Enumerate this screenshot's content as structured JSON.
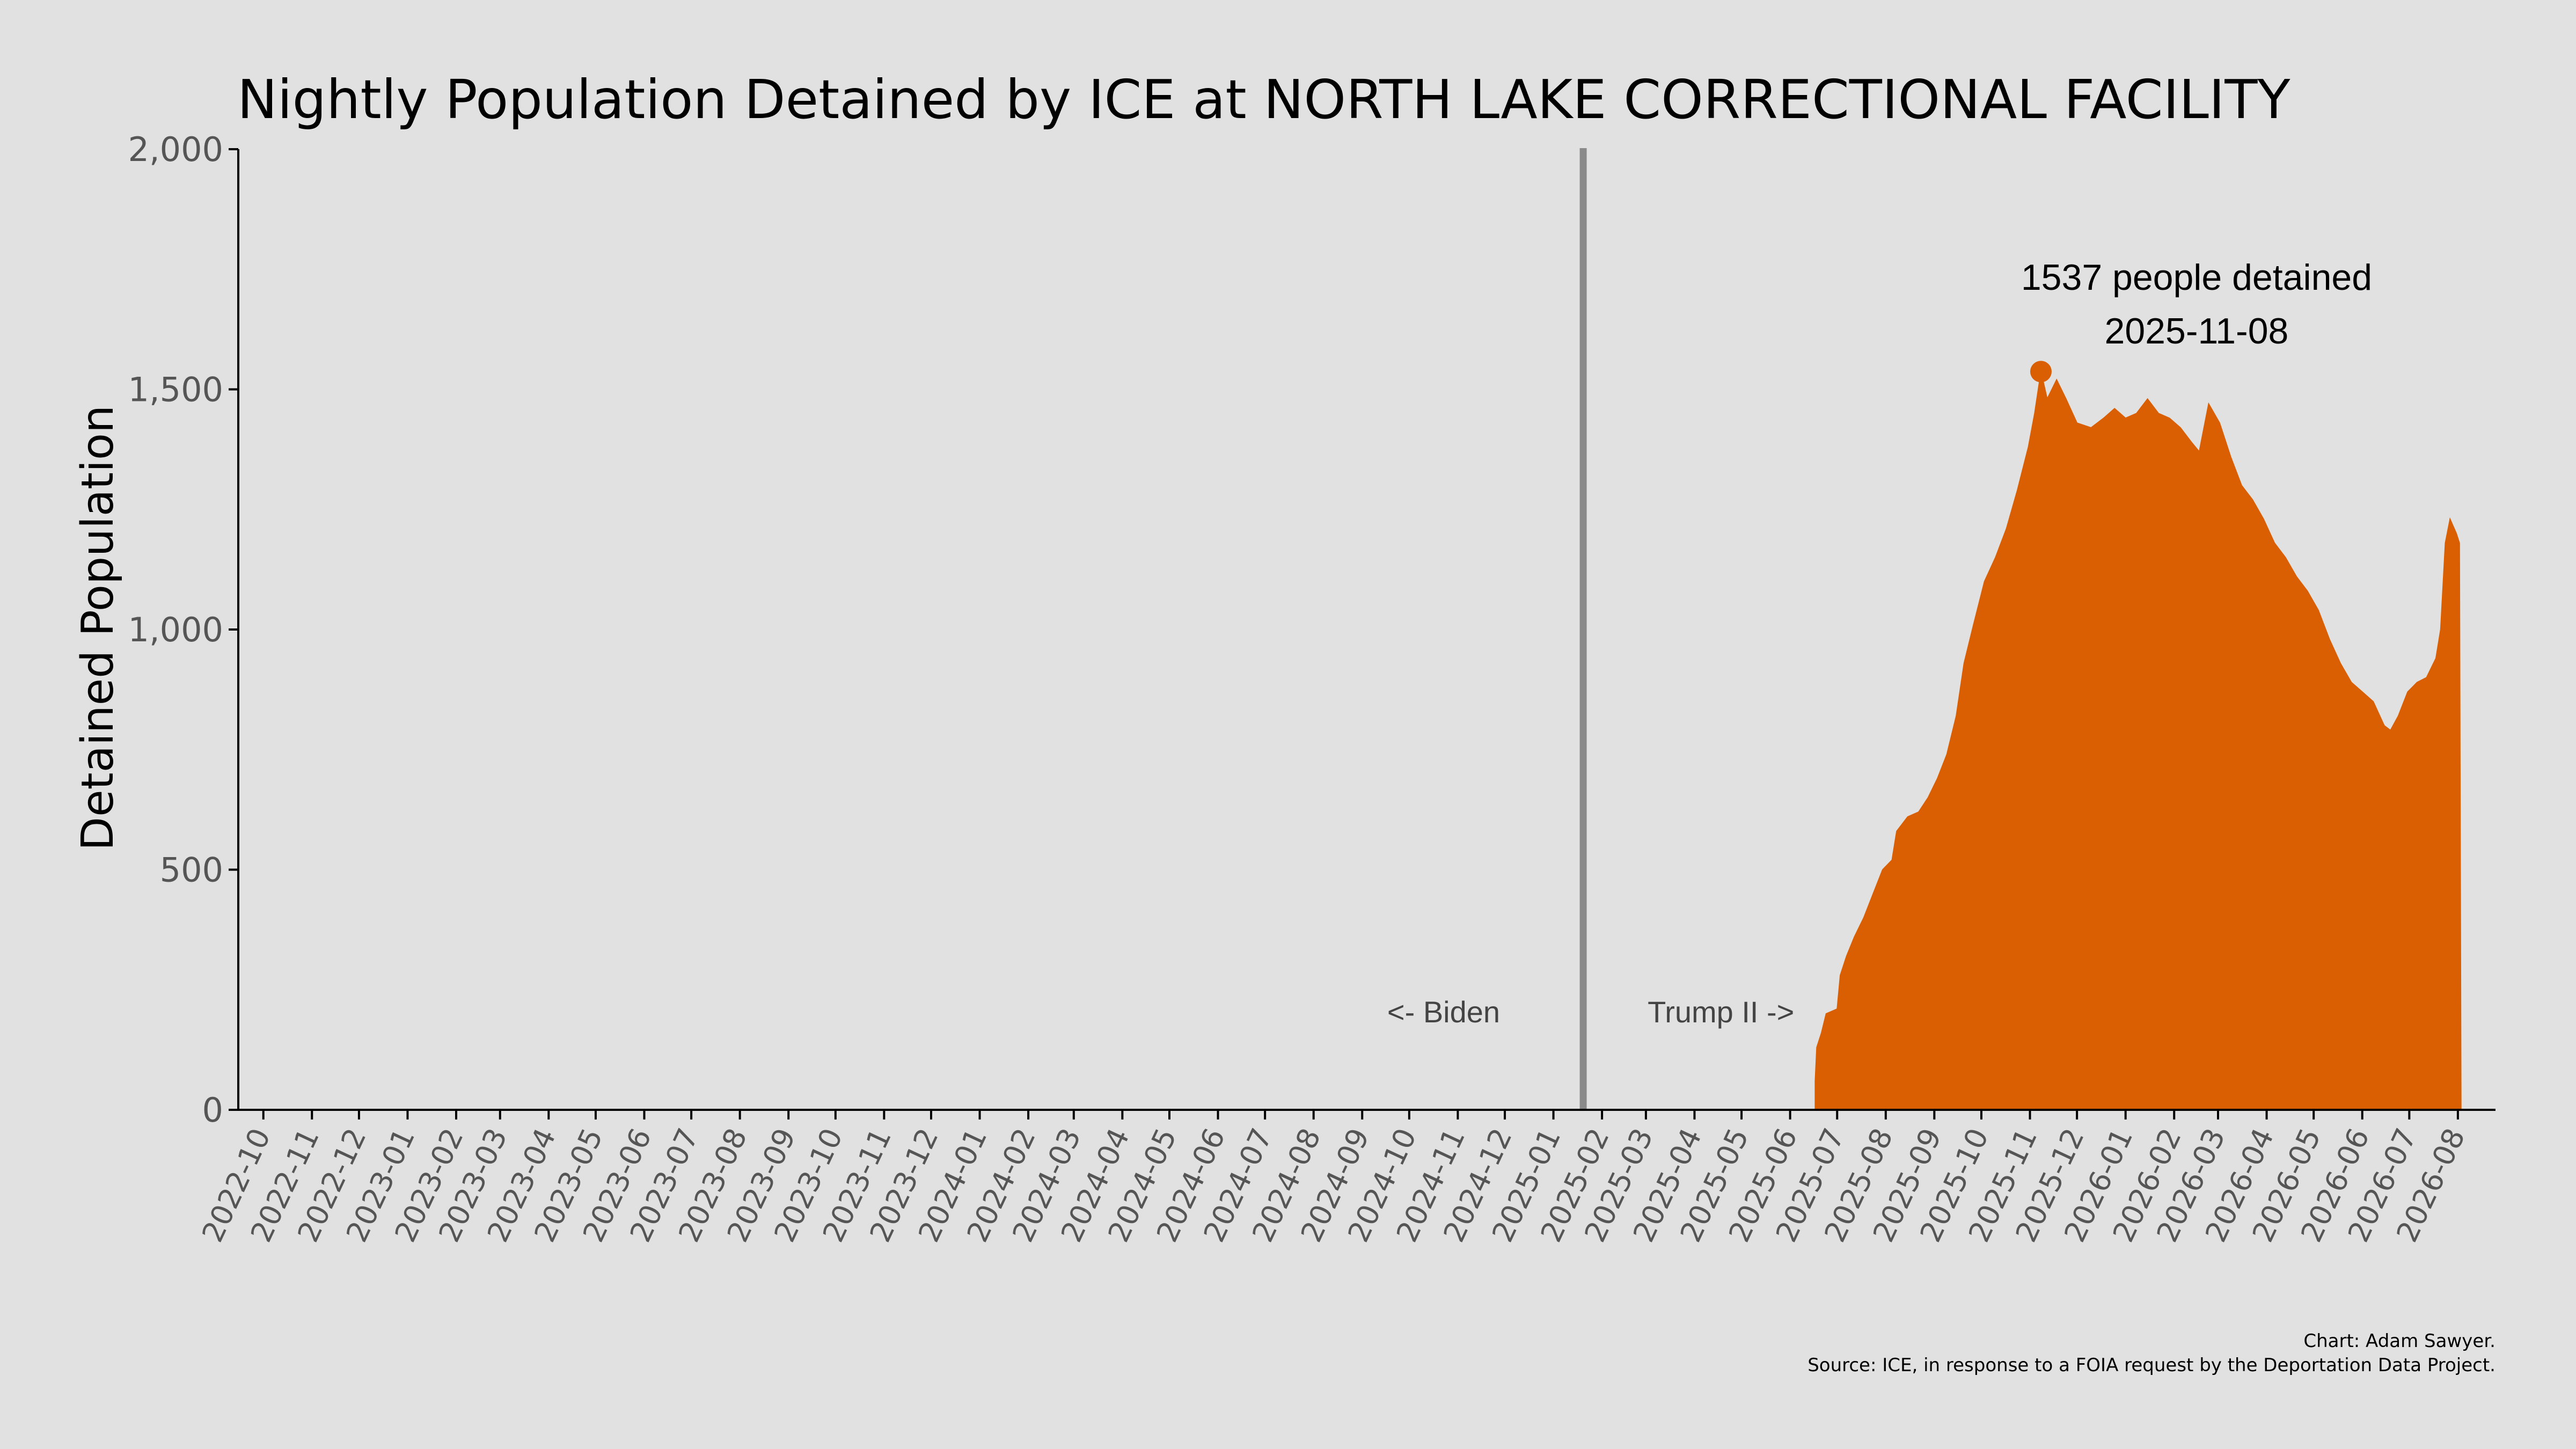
{
  "chart_data": {
    "type": "area",
    "title": "Nightly Population Detained by ICE at NORTH LAKE CORRECTIONAL FACILITY",
    "ylabel": "Detained Population",
    "xlabel": "",
    "ylim": [
      0,
      2000
    ],
    "xlim": [
      "2022-09-15",
      "2026-08-25"
    ],
    "y_ticks": [
      0,
      500,
      1000,
      1500,
      2000
    ],
    "y_tick_labels": [
      "0",
      "500",
      "1,000",
      "1,500",
      "2,000"
    ],
    "x_tick_labels": [
      "2022-10",
      "2022-11",
      "2022-12",
      "2023-01",
      "2023-02",
      "2023-03",
      "2023-04",
      "2023-05",
      "2023-06",
      "2023-07",
      "2023-08",
      "2023-09",
      "2023-10",
      "2023-11",
      "2023-12",
      "2024-01",
      "2024-02",
      "2024-03",
      "2024-04",
      "2024-05",
      "2024-06",
      "2024-07",
      "2024-08",
      "2024-09",
      "2024-10",
      "2024-11",
      "2024-12",
      "2025-01",
      "2025-02",
      "2025-03",
      "2025-04",
      "2025-05",
      "2025-06",
      "2025-07",
      "2025-08",
      "2025-09",
      "2025-10",
      "2025-11",
      "2025-12",
      "2026-01",
      "2026-02",
      "2026-03",
      "2026-04",
      "2026-05",
      "2026-06",
      "2026-07",
      "2026-08"
    ],
    "grid": false,
    "series": [
      {
        "color": "#d95f02",
        "points": [
          [
            "2025-06-17",
            60
          ],
          [
            "2025-06-18",
            130
          ],
          [
            "2025-06-21",
            160
          ],
          [
            "2025-06-24",
            200
          ],
          [
            "2025-07-01",
            210
          ],
          [
            "2025-07-03",
            280
          ],
          [
            "2025-07-07",
            320
          ],
          [
            "2025-07-12",
            360
          ],
          [
            "2025-07-18",
            400
          ],
          [
            "2025-07-24",
            450
          ],
          [
            "2025-07-30",
            500
          ],
          [
            "2025-08-05",
            520
          ],
          [
            "2025-08-08",
            580
          ],
          [
            "2025-08-15",
            610
          ],
          [
            "2025-08-22",
            620
          ],
          [
            "2025-08-28",
            650
          ],
          [
            "2025-09-03",
            690
          ],
          [
            "2025-09-09",
            740
          ],
          [
            "2025-09-15",
            820
          ],
          [
            "2025-09-20",
            930
          ],
          [
            "2025-09-26",
            1010
          ],
          [
            "2025-10-03",
            1100
          ],
          [
            "2025-10-10",
            1150
          ],
          [
            "2025-10-17",
            1210
          ],
          [
            "2025-10-24",
            1290
          ],
          [
            "2025-10-31",
            1380
          ],
          [
            "2025-11-04",
            1450
          ],
          [
            "2025-11-08",
            1537
          ],
          [
            "2025-11-12",
            1480
          ],
          [
            "2025-11-18",
            1520
          ],
          [
            "2025-11-24",
            1480
          ],
          [
            "2025-12-01",
            1430
          ],
          [
            "2025-12-10",
            1420
          ],
          [
            "2025-12-18",
            1440
          ],
          [
            "2025-12-25",
            1460
          ],
          [
            "2026-01-01",
            1440
          ],
          [
            "2026-01-08",
            1450
          ],
          [
            "2026-01-15",
            1480
          ],
          [
            "2026-01-22",
            1450
          ],
          [
            "2026-01-29",
            1440
          ],
          [
            "2026-02-05",
            1420
          ],
          [
            "2026-02-12",
            1390
          ],
          [
            "2026-02-17",
            1370
          ],
          [
            "2026-02-23",
            1470
          ],
          [
            "2026-03-02",
            1430
          ],
          [
            "2026-03-09",
            1360
          ],
          [
            "2026-03-16",
            1300
          ],
          [
            "2026-03-23",
            1270
          ],
          [
            "2026-03-30",
            1230
          ],
          [
            "2026-04-06",
            1180
          ],
          [
            "2026-04-13",
            1150
          ],
          [
            "2026-04-20",
            1110
          ],
          [
            "2026-04-27",
            1080
          ],
          [
            "2026-05-04",
            1040
          ],
          [
            "2026-05-11",
            980
          ],
          [
            "2026-05-18",
            930
          ],
          [
            "2026-05-25",
            890
          ],
          [
            "2026-06-01",
            870
          ],
          [
            "2026-06-08",
            850
          ],
          [
            "2026-06-15",
            800
          ],
          [
            "2026-06-19",
            790
          ],
          [
            "2026-06-24",
            820
          ],
          [
            "2026-06-30",
            870
          ],
          [
            "2026-07-06",
            890
          ],
          [
            "2026-07-12",
            900
          ],
          [
            "2026-07-18",
            940
          ],
          [
            "2026-07-21",
            1000
          ],
          [
            "2026-07-24",
            1180
          ],
          [
            "2026-07-27",
            1230
          ],
          [
            "2026-07-31",
            1200
          ],
          [
            "2026-08-02",
            1180
          ],
          [
            "2026-08-03",
            0
          ]
        ]
      }
    ],
    "annotations": {
      "divider_date": "2025-01-20",
      "left_label": "<- Biden",
      "right_label": "Trump II ->",
      "peak_value": 1537,
      "peak_date": "2025-11-08",
      "peak_line1": "1537 people detained",
      "peak_line2": "2025-11-08"
    },
    "credit_line1": "Chart: Adam Sawyer.",
    "credit_line2": "Source: ICE, in response to a FOIA request by the Deportation Data Project."
  }
}
